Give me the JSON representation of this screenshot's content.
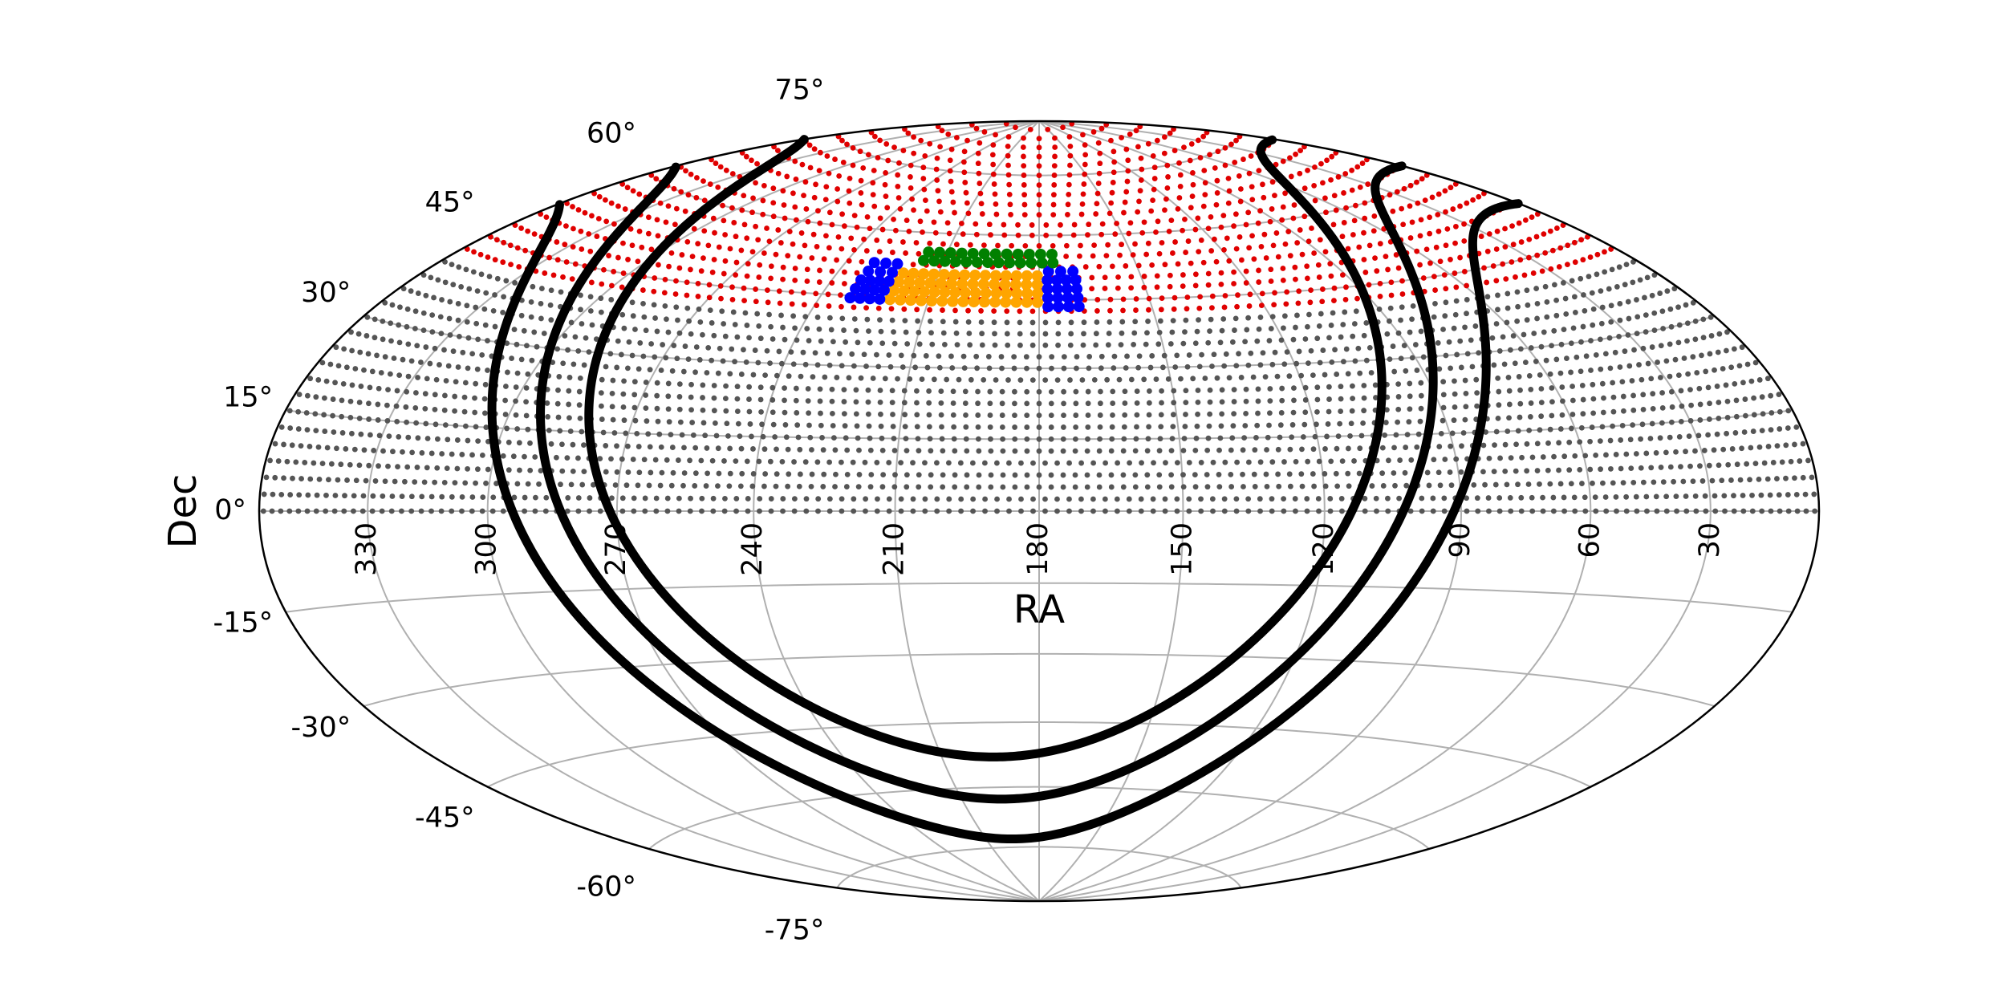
{
  "chart_data": {
    "type": "skymap",
    "projection": "hammer",
    "xlabel": "RA",
    "ylabel": "Dec",
    "xticks": [
      330,
      300,
      270,
      240,
      210,
      180,
      150,
      120,
      90,
      60,
      30
    ],
    "yticks": [
      {
        "value": -75,
        "label": "-75°"
      },
      {
        "value": -60,
        "label": "-60°"
      },
      {
        "value": -45,
        "label": "-45°"
      },
      {
        "value": -30,
        "label": "-30°"
      },
      {
        "value": -15,
        "label": "-15°"
      },
      {
        "value": 0,
        "label": "0°"
      },
      {
        "value": 15,
        "label": "15°"
      },
      {
        "value": 30,
        "label": "30°"
      },
      {
        "value": 45,
        "label": "45°"
      },
      {
        "value": 60,
        "label": "60°"
      },
      {
        "value": 75,
        "label": "75°"
      }
    ],
    "grid": true,
    "series": [
      {
        "color": "#555555",
        "ra_range": [
          0,
          360
        ],
        "ra_spacing": 2.5,
        "dec": [
          0,
          2.5,
          5,
          7.5,
          10,
          12.5,
          15,
          17.5,
          20,
          22.5,
          25,
          27.5,
          30,
          32.5,
          35,
          37.5,
          40
        ]
      },
      {
        "color": "#e00000",
        "ra_range": [
          0,
          360
        ],
        "ra_spacing": 2.5,
        "dec": [
          42.5,
          45,
          47.5,
          50,
          52.5,
          55,
          57.5,
          60,
          62.5,
          65,
          67.5,
          70,
          72.5,
          75,
          77.5,
          80,
          82.5,
          85,
          87.5
        ]
      },
      {
        "color": "#ffa500",
        "ra_range": [
          179,
          222
        ],
        "ra_spacing": 2,
        "dec": [
          44.5,
          46.5,
          48.5,
          50.5
        ]
      },
      {
        "color": "#0000ff",
        "ra_range": [
          222,
          233
        ],
        "ra_spacing": 2,
        "dec": [
          44.5,
          46.5,
          48.5,
          50.5,
          52.5
        ]
      },
      {
        "color": "#0000ff",
        "ra_range": [
          168,
          179
        ],
        "ra_spacing": 2,
        "dec": [
          43.5,
          45.5,
          47.5,
          49.5,
          51.5
        ]
      },
      {
        "color": "#008000",
        "ra_range": [
          174,
          218
        ],
        "ra_spacing": 2,
        "dec": [
          53.5,
          55.5
        ]
      }
    ],
    "galactic_lines": {
      "color": "#000000",
      "b": [
        10,
        0,
        -10
      ]
    }
  }
}
